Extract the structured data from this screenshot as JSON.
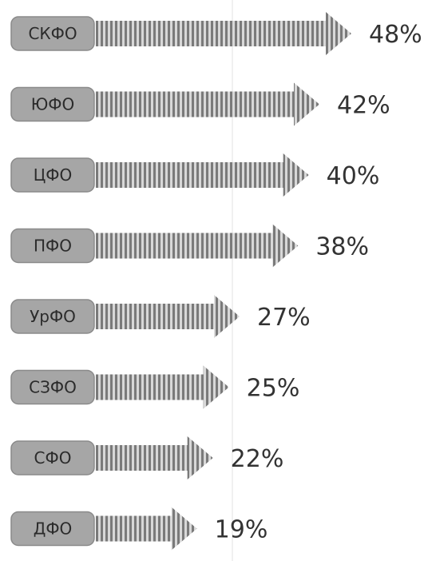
{
  "chart_data": {
    "type": "bar",
    "orientation": "horizontal",
    "categories": [
      "СКФО",
      "ЮФО",
      "ЦФО",
      "ПФО",
      "УрФО",
      "СЗФО",
      "СФО",
      "ДФО"
    ],
    "values": [
      48,
      42,
      40,
      38,
      27,
      25,
      22,
      19
    ],
    "value_labels": [
      "48%",
      "42%",
      "40%",
      "38%",
      "27%",
      "25%",
      "22%",
      "19%"
    ],
    "unit": "%",
    "xlim": [
      0,
      48
    ],
    "grid": false,
    "legend": "none",
    "title": "",
    "xlabel": "",
    "ylabel": ""
  },
  "colors": {
    "label_box_fill": "#a6a6a6",
    "label_box_stroke": "#8a8a8a",
    "stripe_dark": "#7a7a7a",
    "stripe_light": "#d8d8d8",
    "label_text": "#2b2b2b",
    "value_text": "#333333",
    "guide_line": "#e2e2e2"
  }
}
